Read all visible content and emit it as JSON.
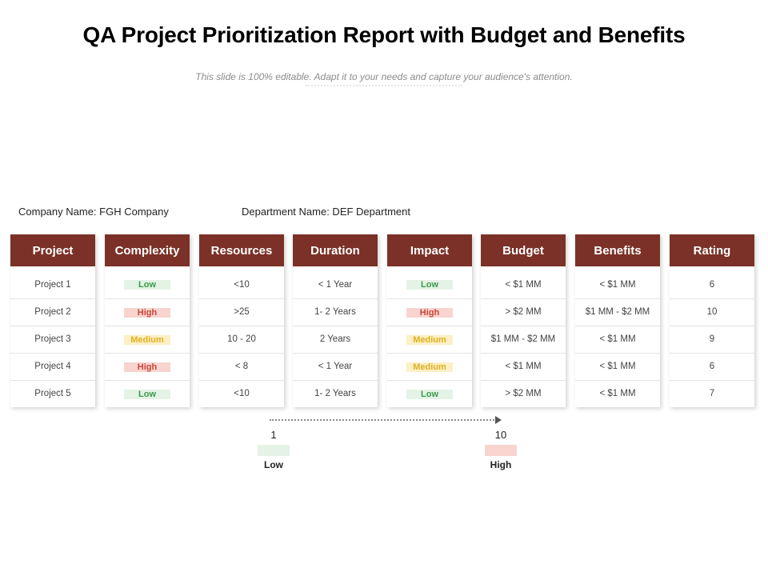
{
  "title": "QA Project Prioritization Report with Budget and Benefits",
  "subtitle": "This slide is 100% editable. Adapt it to your needs and capture your audience's attention.",
  "company": "Company Name: FGH Company",
  "department": "Department Name: DEF Department",
  "colors": {
    "header_bg": "#7b3127",
    "low": "#3b9a4d",
    "high": "#c9463a",
    "medium": "#e0b024"
  },
  "table": {
    "headers": [
      "Project",
      "Complexity",
      "Resources",
      "Duration",
      "Impact",
      "Budget",
      "Benefits",
      "Rating"
    ],
    "rows": [
      [
        "Project 1",
        "Low",
        "<10",
        "< 1 Year",
        "Low",
        "< $1 MM",
        "< $1 MM",
        "6"
      ],
      [
        "Project 2",
        "High",
        ">25",
        "1- 2 Years",
        "High",
        "> $2 MM",
        "$1 MM - $2 MM",
        "10"
      ],
      [
        "Project 3",
        "Medium",
        "10 - 20",
        "2 Years",
        "Medium",
        "$1 MM - $2 MM",
        "< $1 MM",
        "9"
      ],
      [
        "Project 4",
        "High",
        "< 8",
        "< 1 Year",
        "Medium",
        "< $1 MM",
        "< $1 MM",
        "6"
      ],
      [
        "Project 5",
        "Low",
        "<10",
        "1- 2 Years",
        "Low",
        "> $2 MM",
        "< $1 MM",
        "7"
      ]
    ]
  },
  "scale": {
    "min_value": "1",
    "max_value": "10",
    "min_label": "Low",
    "max_label": "High"
  }
}
